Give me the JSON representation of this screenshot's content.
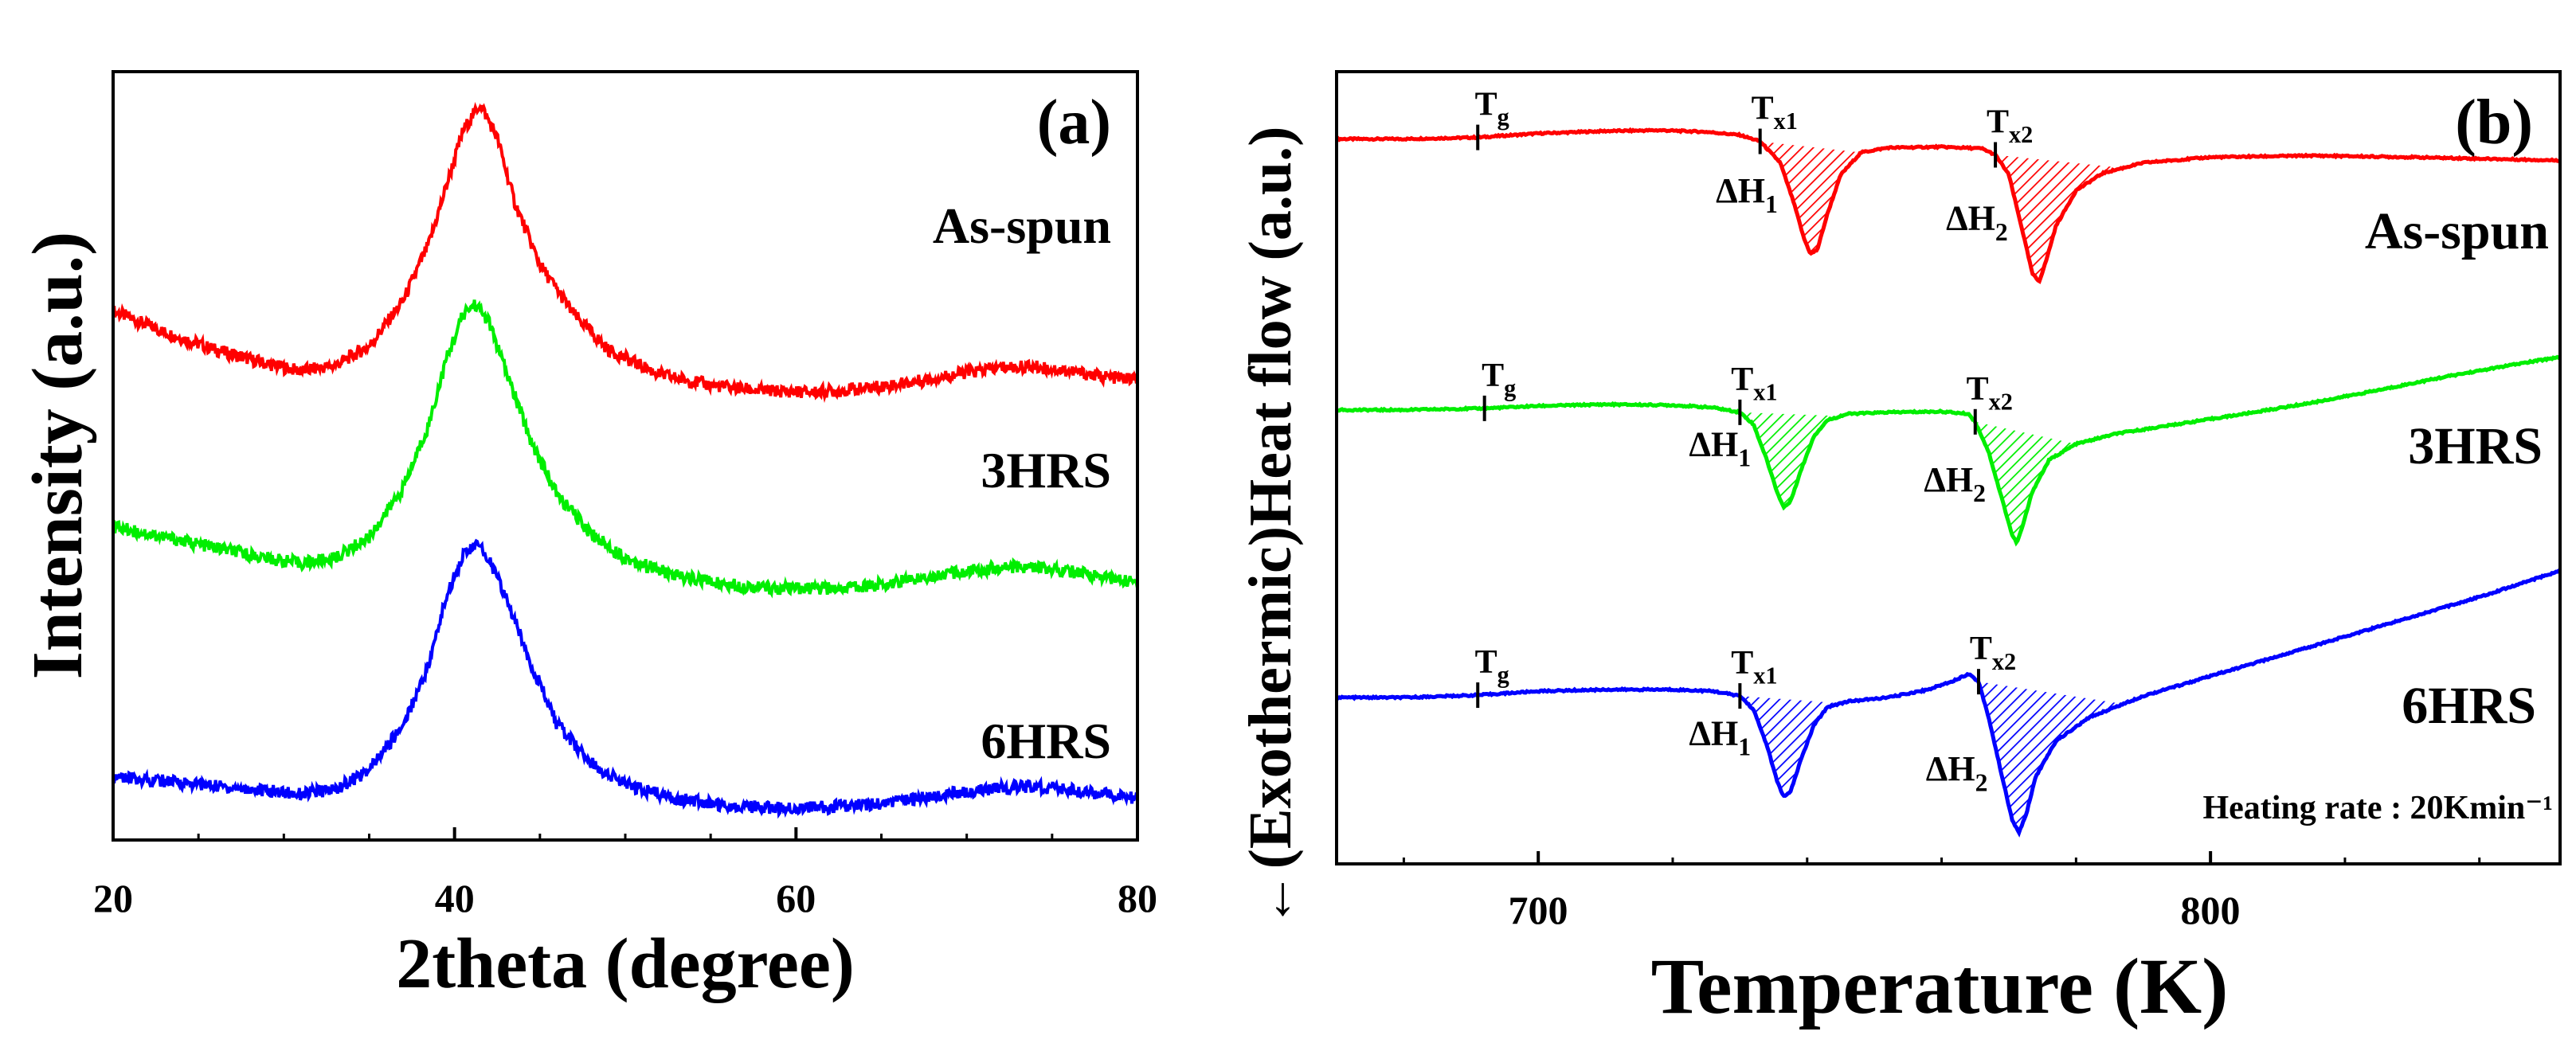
{
  "chart_data": [
    {
      "type": "line",
      "panel_label": "(a)",
      "xlabel": "2theta (degree)",
      "ylabel": "Intensity (a.u.)",
      "xlim": [
        20,
        80
      ],
      "ylim": [
        0,
        1
      ],
      "xticks": [
        20,
        40,
        60,
        80
      ],
      "xtick_labels": [
        "20",
        "40",
        "60",
        "80"
      ],
      "grid": false,
      "series": [
        {
          "name": "As-spun",
          "color": "#ff0000",
          "label": "As-spun",
          "points": [
            [
              20,
              0.705
            ],
            [
              23,
              0.675
            ],
            [
              26,
              0.65
            ],
            [
              29,
              0.63
            ],
            [
              31,
              0.62
            ],
            [
              33,
              0.628
            ],
            [
              35,
              0.655
            ],
            [
              37,
              0.72
            ],
            [
              38.5,
              0.8
            ],
            [
              39.5,
              0.88
            ],
            [
              40.5,
              0.96
            ],
            [
              41.5,
              0.998
            ],
            [
              42.5,
              0.95
            ],
            [
              43.5,
              0.86
            ],
            [
              45,
              0.77
            ],
            [
              47,
              0.7
            ],
            [
              49,
              0.65
            ],
            [
              52,
              0.615
            ],
            [
              55,
              0.6
            ],
            [
              58,
              0.592
            ],
            [
              61,
              0.59
            ],
            [
              64,
              0.595
            ],
            [
              67,
              0.605
            ],
            [
              70,
              0.618
            ],
            [
              72,
              0.625
            ],
            [
              74,
              0.626
            ],
            [
              76,
              0.62
            ],
            [
              78,
              0.612
            ],
            [
              80,
              0.608
            ]
          ]
        },
        {
          "name": "3HRS",
          "color": "#00ee00",
          "label": "3HRS",
          "points": [
            [
              20,
              0.4
            ],
            [
              23,
              0.385
            ],
            [
              26,
              0.37
            ],
            [
              29,
              0.355
            ],
            [
              31,
              0.348
            ],
            [
              33,
              0.355
            ],
            [
              35,
              0.385
            ],
            [
              37,
              0.455
            ],
            [
              38.5,
              0.545
            ],
            [
              39.5,
              0.635
            ],
            [
              40.5,
              0.7
            ],
            [
              41.2,
              0.715
            ],
            [
              42,
              0.69
            ],
            [
              43,
              0.62
            ],
            [
              44.5,
              0.52
            ],
            [
              46,
              0.445
            ],
            [
              48,
              0.39
            ],
            [
              50,
              0.355
            ],
            [
              53,
              0.33
            ],
            [
              56,
              0.318
            ],
            [
              59,
              0.312
            ],
            [
              62,
              0.312
            ],
            [
              65,
              0.318
            ],
            [
              68,
              0.33
            ],
            [
              71,
              0.34
            ],
            [
              73,
              0.343
            ],
            [
              75,
              0.34
            ],
            [
              77,
              0.333
            ],
            [
              80,
              0.32
            ]
          ]
        },
        {
          "name": "6HRS",
          "color": "#0000ff",
          "label": "6HRS",
          "points": [
            [
              20,
              0.045
            ],
            [
              23,
              0.04
            ],
            [
              26,
              0.033
            ],
            [
              29,
              0.026
            ],
            [
              31,
              0.022
            ],
            [
              33,
              0.028
            ],
            [
              35,
              0.055
            ],
            [
              37,
              0.12
            ],
            [
              38.5,
              0.205
            ],
            [
              39.5,
              0.3
            ],
            [
              40.5,
              0.36
            ],
            [
              41.3,
              0.375
            ],
            [
              42,
              0.355
            ],
            [
              43,
              0.3
            ],
            [
              44.5,
              0.205
            ],
            [
              46,
              0.12
            ],
            [
              48,
              0.065
            ],
            [
              50,
              0.035
            ],
            [
              53,
              0.015
            ],
            [
              56,
              0.005
            ],
            [
              59,
              0.002
            ],
            [
              62,
              0.003
            ],
            [
              65,
              0.008
            ],
            [
              68,
              0.018
            ],
            [
              71,
              0.028
            ],
            [
              73,
              0.032
            ],
            [
              75,
              0.03
            ],
            [
              77,
              0.024
            ],
            [
              80,
              0.015
            ]
          ]
        }
      ]
    },
    {
      "type": "line",
      "panel_label": "(b)",
      "xlabel": "Temperature (K)",
      "ylabel": "(Exothermic)Heat flow (a.u.)",
      "ylabel_arrow": "←",
      "xlim": [
        670,
        852
      ],
      "ylim": [
        0,
        1
      ],
      "xticks": [
        700,
        800
      ],
      "xtick_labels": [
        "700",
        "800"
      ],
      "grid": false,
      "annotation": "Heating rate : 20Kmin⁻¹",
      "marker_labels": {
        "tg_main": "T",
        "tg_sub": "g",
        "tx1_main": "T",
        "tx1_sub": "x1",
        "tx2_main": "T",
        "tx2_sub": "x2",
        "dh_main": "ΔH",
        "dh1_sub": "1",
        "dh2_sub": "2"
      },
      "series": [
        {
          "name": "As-spun",
          "color": "#ff0000",
          "label": "As-spun",
          "tg": 691,
          "tx1": 733.0,
          "tx2": 768.0,
          "shade1_to": 748,
          "shade2_to": 787,
          "points": [
            [
              670,
              0.915
            ],
            [
              680,
              0.915
            ],
            [
              691,
              0.917
            ],
            [
              700,
              0.922
            ],
            [
              710,
              0.925
            ],
            [
              718,
              0.926
            ],
            [
              725,
              0.924
            ],
            [
              730,
              0.92
            ],
            [
              733,
              0.912
            ],
            [
              736,
              0.885
            ],
            [
              738,
              0.835
            ],
            [
              739.5,
              0.79
            ],
            [
              740.5,
              0.77
            ],
            [
              741.5,
              0.775
            ],
            [
              743,
              0.82
            ],
            [
              745,
              0.87
            ],
            [
              748,
              0.898
            ],
            [
              752,
              0.904
            ],
            [
              760,
              0.905
            ],
            [
              766,
              0.903
            ],
            [
              768,
              0.895
            ],
            [
              770,
              0.87
            ],
            [
              772,
              0.8
            ],
            [
              773.5,
              0.745
            ],
            [
              774.5,
              0.735
            ],
            [
              775.5,
              0.76
            ],
            [
              777,
              0.805
            ],
            [
              780,
              0.85
            ],
            [
              784,
              0.872
            ],
            [
              790,
              0.885
            ],
            [
              800,
              0.892
            ],
            [
              815,
              0.894
            ],
            [
              830,
              0.892
            ],
            [
              852,
              0.888
            ]
          ]
        },
        {
          "name": "3HRS",
          "color": "#00ee00",
          "label": "3HRS",
          "tg": 692,
          "tx1": 730.0,
          "tx2": 765.0,
          "shade1_to": 745,
          "shade2_to": 780,
          "points": [
            [
              670,
              0.573
            ],
            [
              680,
              0.573
            ],
            [
              692,
              0.575
            ],
            [
              700,
              0.578
            ],
            [
              710,
              0.58
            ],
            [
              720,
              0.579
            ],
            [
              726,
              0.576
            ],
            [
              730,
              0.57
            ],
            [
              732,
              0.555
            ],
            [
              734,
              0.51
            ],
            [
              735.5,
              0.47
            ],
            [
              736.5,
              0.45
            ],
            [
              737.5,
              0.457
            ],
            [
              739,
              0.495
            ],
            [
              741,
              0.54
            ],
            [
              743,
              0.56
            ],
            [
              746,
              0.568
            ],
            [
              752,
              0.57
            ],
            [
              760,
              0.571
            ],
            [
              764,
              0.568
            ],
            [
              765,
              0.558
            ],
            [
              767,
              0.52
            ],
            [
              769,
              0.46
            ],
            [
              770.5,
              0.415
            ],
            [
              771.2,
              0.405
            ],
            [
              772,
              0.425
            ],
            [
              773.5,
              0.47
            ],
            [
              776,
              0.51
            ],
            [
              780,
              0.53
            ],
            [
              786,
              0.543
            ],
            [
              795,
              0.555
            ],
            [
              805,
              0.568
            ],
            [
              815,
              0.582
            ],
            [
              825,
              0.598
            ],
            [
              835,
              0.615
            ],
            [
              845,
              0.63
            ],
            [
              852,
              0.64
            ]
          ]
        },
        {
          "name": "6HRS",
          "color": "#0000ff",
          "label": "6HRS",
          "tg": 691,
          "tx1": 730.0,
          "tx2": 765.5,
          "shade1_to": 745,
          "shade2_to": 787,
          "points": [
            [
              670,
              0.21
            ],
            [
              680,
              0.21
            ],
            [
              691,
              0.213
            ],
            [
              700,
              0.218
            ],
            [
              710,
              0.22
            ],
            [
              720,
              0.22
            ],
            [
              726,
              0.218
            ],
            [
              730,
              0.212
            ],
            [
              732,
              0.195
            ],
            [
              734,
              0.15
            ],
            [
              735.5,
              0.105
            ],
            [
              736.5,
              0.085
            ],
            [
              737.5,
              0.09
            ],
            [
              739,
              0.13
            ],
            [
              741,
              0.175
            ],
            [
              743,
              0.198
            ],
            [
              746,
              0.205
            ],
            [
              752,
              0.21
            ],
            [
              758,
              0.22
            ],
            [
              762,
              0.232
            ],
            [
              764,
              0.24
            ],
            [
              765.5,
              0.23
            ],
            [
              767,
              0.185
            ],
            [
              769,
              0.11
            ],
            [
              770.5,
              0.055
            ],
            [
              771.5,
              0.04
            ],
            [
              772.5,
              0.06
            ],
            [
              774,
              0.11
            ],
            [
              777,
              0.155
            ],
            [
              782,
              0.185
            ],
            [
              790,
              0.212
            ],
            [
              800,
              0.237
            ],
            [
              810,
              0.262
            ],
            [
              820,
              0.287
            ],
            [
              830,
              0.312
            ],
            [
              840,
              0.337
            ],
            [
              852,
              0.37
            ]
          ]
        }
      ]
    }
  ]
}
